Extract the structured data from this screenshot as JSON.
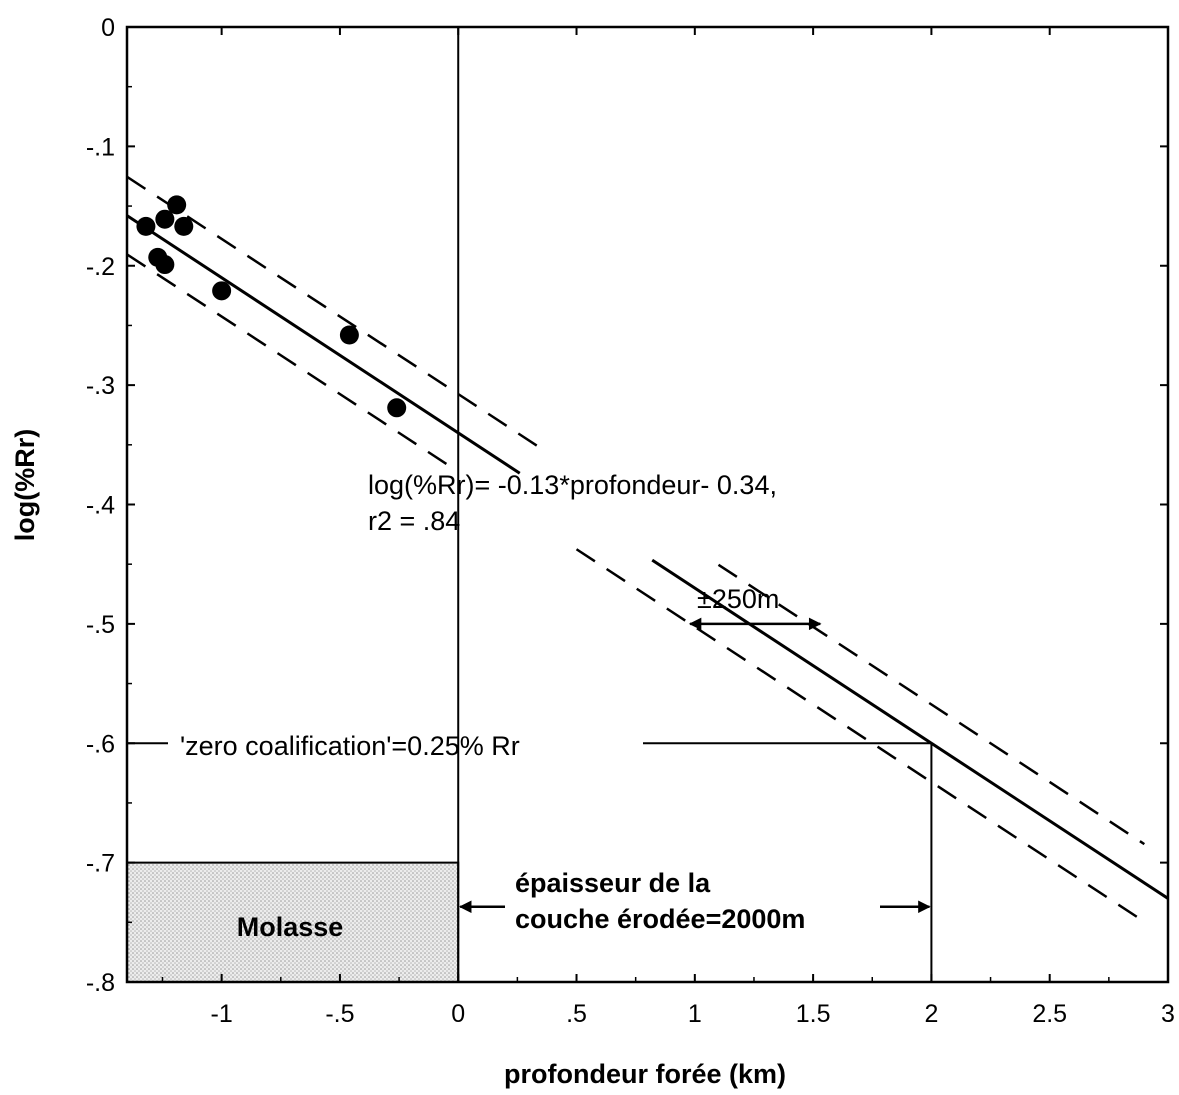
{
  "chart_data": {
    "type": "scatter",
    "xlabel": "profondeur forée (km)",
    "ylabel": "log(%Rr)",
    "xlim": [
      -1.4,
      3.0
    ],
    "ylim": [
      -0.8,
      0.0
    ],
    "x_ticks": [
      {
        "value": -1,
        "label": "-1"
      },
      {
        "value": -0.5,
        "label": "-.5"
      },
      {
        "value": 0,
        "label": "0"
      },
      {
        "value": 0.5,
        "label": ".5"
      },
      {
        "value": 1,
        "label": "1"
      },
      {
        "value": 1.5,
        "label": "1.5"
      },
      {
        "value": 2,
        "label": "2"
      },
      {
        "value": 2.5,
        "label": "2.5"
      },
      {
        "value": 3,
        "label": "3"
      }
    ],
    "y_ticks": [
      {
        "value": 0,
        "label": "0"
      },
      {
        "value": -0.1,
        "label": "-.1"
      },
      {
        "value": -0.2,
        "label": "-.2"
      },
      {
        "value": -0.3,
        "label": "-.3"
      },
      {
        "value": -0.4,
        "label": "-.4"
      },
      {
        "value": -0.5,
        "label": "-.5"
      },
      {
        "value": -0.6,
        "label": "-.6"
      },
      {
        "value": -0.7,
        "label": "-.7"
      },
      {
        "value": -0.8,
        "label": "-.8"
      }
    ],
    "points": [
      {
        "x": -1.32,
        "y": -0.167
      },
      {
        "x": -1.19,
        "y": -0.149
      },
      {
        "x": -1.24,
        "y": -0.161
      },
      {
        "x": -1.16,
        "y": -0.167
      },
      {
        "x": -1.27,
        "y": -0.193
      },
      {
        "x": -1.24,
        "y": -0.199
      },
      {
        "x": -1.0,
        "y": -0.221
      },
      {
        "x": -0.46,
        "y": -0.258
      },
      {
        "x": -0.26,
        "y": -0.319
      }
    ],
    "regression": {
      "slope": -0.13,
      "intercept": -0.34,
      "x_range": [
        -1.4,
        3.0
      ]
    },
    "confidence_band": {
      "offset_km": 0.25,
      "x_range": [
        -1.4,
        2.9
      ]
    },
    "reference_lines": {
      "x_zero": 0,
      "y_zero_coalification": -0.6,
      "x_eroded": 2.0
    },
    "molasse_box": {
      "x_range": [
        -1.4,
        0
      ],
      "y_range": [
        -0.8,
        -0.7
      ]
    },
    "annotations": {
      "equation_line1": "log(%Rr)= -0.13*profondeur- 0.34,",
      "equation_line2": "r2 = .84",
      "band_label": "±250m",
      "zero_coal": "'zero coalification'=0.25% Rr",
      "eroded_line1": "épaisseur de la",
      "eroded_line2": "couche érodée=2000m",
      "molasse": "Molasse"
    }
  }
}
